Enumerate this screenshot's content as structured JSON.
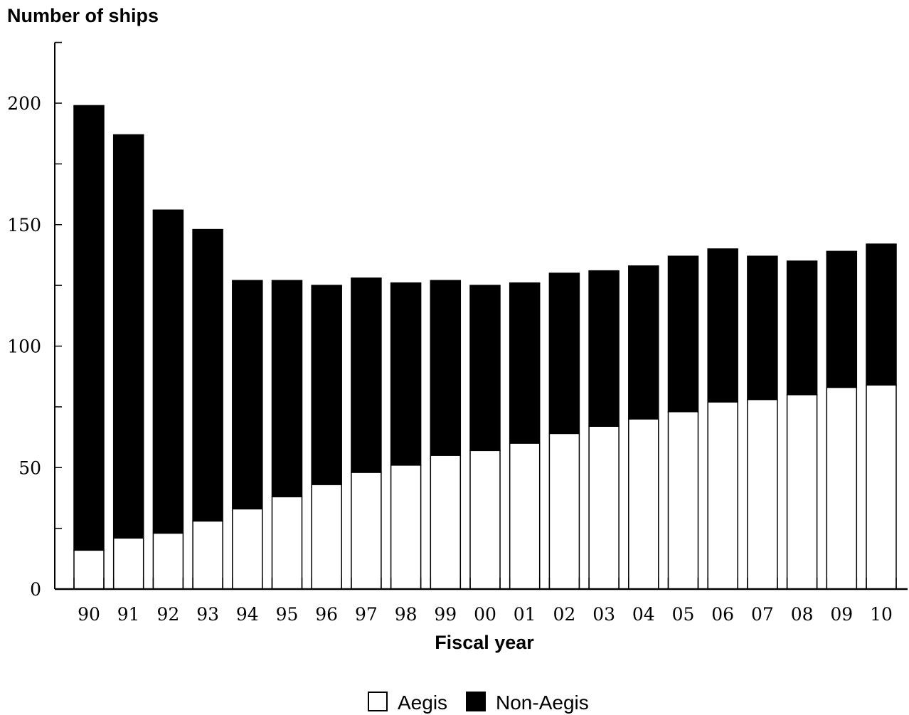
{
  "chart_data": {
    "type": "bar",
    "stacked": true,
    "ylabel": "Number of ships",
    "xlabel": "Fiscal year",
    "ylim": [
      0,
      225
    ],
    "y_ticks": [
      "0",
      "50",
      "100",
      "150",
      "200"
    ],
    "categories": [
      "90",
      "91",
      "92",
      "93",
      "94",
      "95",
      "96",
      "97",
      "98",
      "99",
      "00",
      "01",
      "02",
      "03",
      "04",
      "05",
      "06",
      "07",
      "08",
      "09",
      "10"
    ],
    "series": [
      {
        "name": "Aegis",
        "color": "#ffffff",
        "values": [
          16,
          21,
          23,
          28,
          33,
          38,
          43,
          48,
          51,
          55,
          57,
          60,
          64,
          67,
          70,
          73,
          77,
          78,
          80,
          83,
          84
        ]
      },
      {
        "name": "Non-Aegis",
        "color": "#000000",
        "values": [
          183,
          166,
          133,
          120,
          94,
          89,
          82,
          80,
          75,
          72,
          68,
          66,
          66,
          64,
          63,
          64,
          63,
          59,
          55,
          56,
          58
        ]
      }
    ],
    "legend": "bottom-center",
    "grid": false
  }
}
